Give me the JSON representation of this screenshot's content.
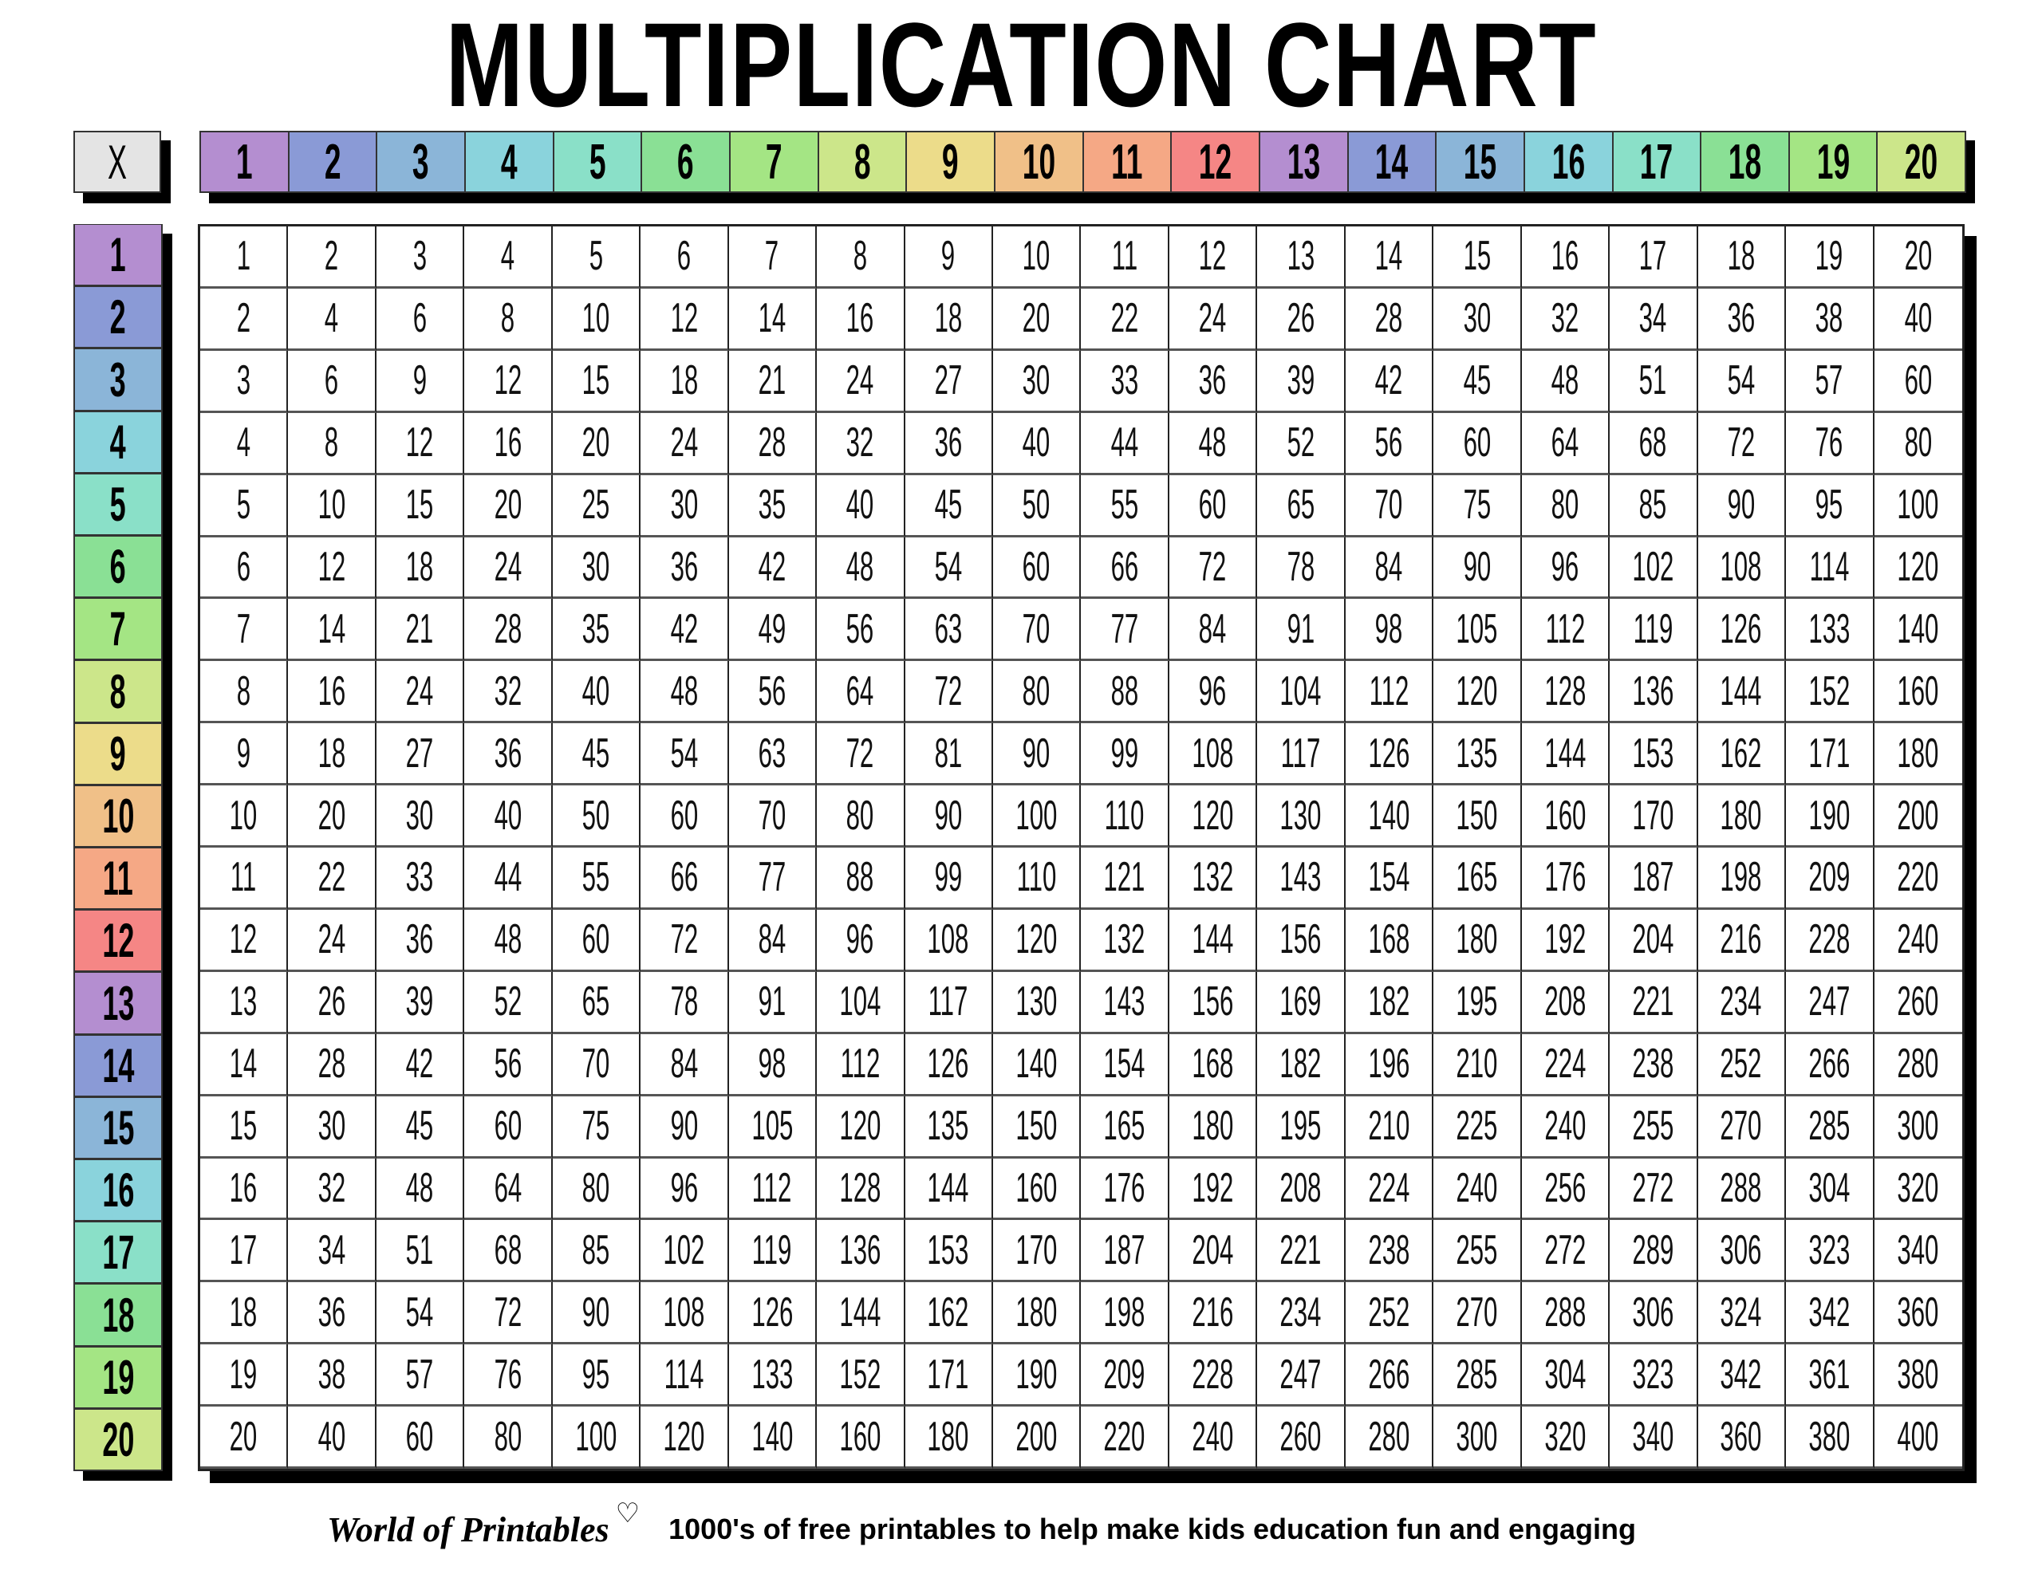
{
  "title": "MULTIPLICATION CHART",
  "corner_label": "X",
  "column_headers": [
    "1",
    "2",
    "3",
    "4",
    "5",
    "6",
    "7",
    "8",
    "9",
    "10",
    "11",
    "12",
    "13",
    "14",
    "15",
    "16",
    "17",
    "18",
    "19",
    "20"
  ],
  "row_headers": [
    "1",
    "2",
    "3",
    "4",
    "5",
    "6",
    "7",
    "8",
    "9",
    "10",
    "11",
    "12",
    "13",
    "14",
    "15",
    "16",
    "17",
    "18",
    "19",
    "20"
  ],
  "header_colors": [
    "#b48ed0",
    "#8a9ad6",
    "#8bb5d8",
    "#8ad3dc",
    "#8ae0c8",
    "#8ae095",
    "#a4e584",
    "#cce68a",
    "#ecdc8a",
    "#f0c088",
    "#f5a885",
    "#f58685",
    "#b48ed0",
    "#8a9ad6",
    "#8bb5d8",
    "#8ad3dc",
    "#8ae0c8",
    "#8ae095",
    "#a4e584",
    "#cce68a"
  ],
  "table": [
    [
      1,
      2,
      3,
      4,
      5,
      6,
      7,
      8,
      9,
      10,
      11,
      12,
      13,
      14,
      15,
      16,
      17,
      18,
      19,
      20
    ],
    [
      2,
      4,
      6,
      8,
      10,
      12,
      14,
      16,
      18,
      20,
      22,
      24,
      26,
      28,
      30,
      32,
      34,
      36,
      38,
      40
    ],
    [
      3,
      6,
      9,
      12,
      15,
      18,
      21,
      24,
      27,
      30,
      33,
      36,
      39,
      42,
      45,
      48,
      51,
      54,
      57,
      60
    ],
    [
      4,
      8,
      12,
      16,
      20,
      24,
      28,
      32,
      36,
      40,
      44,
      48,
      52,
      56,
      60,
      64,
      68,
      72,
      76,
      80
    ],
    [
      5,
      10,
      15,
      20,
      25,
      30,
      35,
      40,
      45,
      50,
      55,
      60,
      65,
      70,
      75,
      80,
      85,
      90,
      95,
      100
    ],
    [
      6,
      12,
      18,
      24,
      30,
      36,
      42,
      48,
      54,
      60,
      66,
      72,
      78,
      84,
      90,
      96,
      102,
      108,
      114,
      120
    ],
    [
      7,
      14,
      21,
      28,
      35,
      42,
      49,
      56,
      63,
      70,
      77,
      84,
      91,
      98,
      105,
      112,
      119,
      126,
      133,
      140
    ],
    [
      8,
      16,
      24,
      32,
      40,
      48,
      56,
      64,
      72,
      80,
      88,
      96,
      104,
      112,
      120,
      128,
      136,
      144,
      152,
      160
    ],
    [
      9,
      18,
      27,
      36,
      45,
      54,
      63,
      72,
      81,
      90,
      99,
      108,
      117,
      126,
      135,
      144,
      153,
      162,
      171,
      180
    ],
    [
      10,
      20,
      30,
      40,
      50,
      60,
      70,
      80,
      90,
      100,
      110,
      120,
      130,
      140,
      150,
      160,
      170,
      180,
      190,
      200
    ],
    [
      11,
      22,
      33,
      44,
      55,
      66,
      77,
      88,
      99,
      110,
      121,
      132,
      143,
      154,
      165,
      176,
      187,
      198,
      209,
      220
    ],
    [
      12,
      24,
      36,
      48,
      60,
      72,
      84,
      96,
      108,
      120,
      132,
      144,
      156,
      168,
      180,
      192,
      204,
      216,
      228,
      240
    ],
    [
      13,
      26,
      39,
      52,
      65,
      78,
      91,
      104,
      117,
      130,
      143,
      156,
      169,
      182,
      195,
      208,
      221,
      234,
      247,
      260
    ],
    [
      14,
      28,
      42,
      56,
      70,
      84,
      98,
      112,
      126,
      140,
      154,
      168,
      182,
      196,
      210,
      224,
      238,
      252,
      266,
      280
    ],
    [
      15,
      30,
      45,
      60,
      75,
      90,
      105,
      120,
      135,
      150,
      165,
      180,
      195,
      210,
      225,
      240,
      255,
      270,
      285,
      300
    ],
    [
      16,
      32,
      48,
      64,
      80,
      96,
      112,
      128,
      144,
      160,
      176,
      192,
      208,
      224,
      240,
      256,
      272,
      288,
      304,
      320
    ],
    [
      17,
      34,
      51,
      68,
      85,
      102,
      119,
      136,
      153,
      170,
      187,
      204,
      221,
      238,
      255,
      272,
      289,
      306,
      323,
      340
    ],
    [
      18,
      36,
      54,
      72,
      90,
      108,
      126,
      144,
      162,
      180,
      198,
      216,
      234,
      252,
      270,
      288,
      306,
      324,
      342,
      360
    ],
    [
      19,
      38,
      57,
      76,
      95,
      114,
      133,
      152,
      171,
      190,
      209,
      228,
      247,
      266,
      285,
      304,
      323,
      342,
      361,
      380
    ],
    [
      20,
      40,
      60,
      80,
      100,
      120,
      140,
      160,
      180,
      200,
      220,
      240,
      260,
      280,
      300,
      320,
      340,
      360,
      380,
      400
    ]
  ],
  "footer": {
    "logo": "World of Printables",
    "logo_icon": "heart-icon",
    "tagline": "1000's of free printables to help make kids education fun and engaging"
  }
}
